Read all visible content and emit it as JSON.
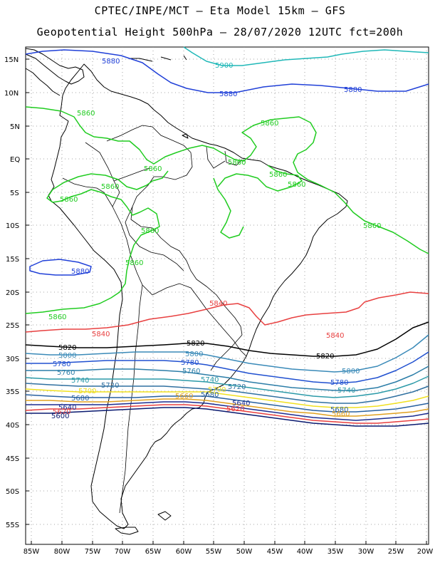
{
  "header": {
    "line1": "CPTEC/INPE/MCT –  Eta Model 15km – GFS",
    "line2": "Geopotential Height 500hPa – 28/07/2020 12UTC fct=200h"
  },
  "axes": {
    "lat_ticks": [
      "15N",
      "10N",
      "5N",
      "EQ",
      "5S",
      "10S",
      "15S",
      "20S",
      "25S",
      "30S",
      "35S",
      "40S",
      "45S",
      "50S",
      "55S"
    ],
    "lon_ticks": [
      "85W",
      "80W",
      "75W",
      "70W",
      "65W",
      "60W",
      "55W",
      "50W",
      "45W",
      "40W",
      "35W",
      "30W",
      "25W",
      "20W"
    ]
  },
  "contours": [
    {
      "level": "5900",
      "color": "#20b8b8"
    },
    {
      "level": "5880",
      "color": "#2040d8"
    },
    {
      "level": "5860",
      "color": "#20cc20"
    },
    {
      "level": "5840",
      "color": "#e84040"
    },
    {
      "level": "5820",
      "color": "#000000"
    },
    {
      "level": "5800",
      "color": "#3a8ab8"
    },
    {
      "level": "5780",
      "color": "#2050d0"
    },
    {
      "level": "5760",
      "color": "#2c7ea8"
    },
    {
      "level": "5740",
      "color": "#2c9aa8"
    },
    {
      "level": "5720",
      "color": "#3070a0"
    },
    {
      "level": "5700",
      "color": "#f0e020"
    },
    {
      "level": "5680",
      "color": "#2860a0"
    },
    {
      "level": "5660",
      "color": "#e0a020"
    },
    {
      "level": "5640",
      "color": "#1c2c90"
    },
    {
      "level": "5620",
      "color": "#e84040"
    },
    {
      "level": "5600",
      "color": "#0a1a70"
    }
  ],
  "labels": [
    {
      "text": "5880",
      "color": "#2040d8"
    },
    {
      "text": "5900",
      "color": "#20b8b8"
    },
    {
      "text": "5880",
      "color": "#2040d8"
    },
    {
      "text": "5880",
      "color": "#2040d8"
    },
    {
      "text": "5860",
      "color": "#20cc20"
    },
    {
      "text": "5860",
      "color": "#20cc20"
    },
    {
      "text": "5860",
      "color": "#20cc20"
    },
    {
      "text": "5860",
      "color": "#20cc20"
    },
    {
      "text": "5860",
      "color": "#20cc20"
    },
    {
      "text": "5860",
      "color": "#20cc20"
    },
    {
      "text": "5860",
      "color": "#20cc20"
    },
    {
      "text": "5860",
      "color": "#20cc20"
    },
    {
      "text": "5860",
      "color": "#20cc20"
    },
    {
      "text": "5860",
      "color": "#20cc20"
    },
    {
      "text": "5860",
      "color": "#20cc20"
    },
    {
      "text": "5880",
      "color": "#2040d8"
    },
    {
      "text": "5860",
      "color": "#20cc20"
    },
    {
      "text": "5840",
      "color": "#e84040"
    },
    {
      "text": "5840",
      "color": "#e84040"
    },
    {
      "text": "5840",
      "color": "#e84040"
    },
    {
      "text": "5820",
      "color": "#000000"
    },
    {
      "text": "5820",
      "color": "#000000"
    },
    {
      "text": "5820",
      "color": "#000000"
    },
    {
      "text": "5800",
      "color": "#3a8ab8"
    },
    {
      "text": "5800",
      "color": "#3a8ab8"
    },
    {
      "text": "5800",
      "color": "#3a8ab8"
    },
    {
      "text": "5780",
      "color": "#2050d0"
    },
    {
      "text": "5780",
      "color": "#2050d0"
    },
    {
      "text": "5780",
      "color": "#2050d0"
    },
    {
      "text": "5760",
      "color": "#2c7ea8"
    },
    {
      "text": "5760",
      "color": "#2c7ea8"
    },
    {
      "text": "5740",
      "color": "#2c9aa8"
    },
    {
      "text": "5740",
      "color": "#2c9aa8"
    },
    {
      "text": "5740",
      "color": "#2c9aa8"
    },
    {
      "text": "5720",
      "color": "#3070a0"
    },
    {
      "text": "5720",
      "color": "#3070a0"
    },
    {
      "text": "5700",
      "color": "#f0e020"
    },
    {
      "text": "5700",
      "color": "#f0e020"
    },
    {
      "text": "5680",
      "color": "#2860a0"
    },
    {
      "text": "5680",
      "color": "#2860a0"
    },
    {
      "text": "5680",
      "color": "#2860a0"
    },
    {
      "text": "5660",
      "color": "#e0a020"
    },
    {
      "text": "5660",
      "color": "#e0a020"
    },
    {
      "text": "5640",
      "color": "#1c2c90"
    },
    {
      "text": "5640",
      "color": "#1c2c90"
    },
    {
      "text": "5620",
      "color": "#e84040"
    },
    {
      "text": "5620",
      "color": "#e84040"
    },
    {
      "text": "5600",
      "color": "#0a1a70"
    }
  ]
}
